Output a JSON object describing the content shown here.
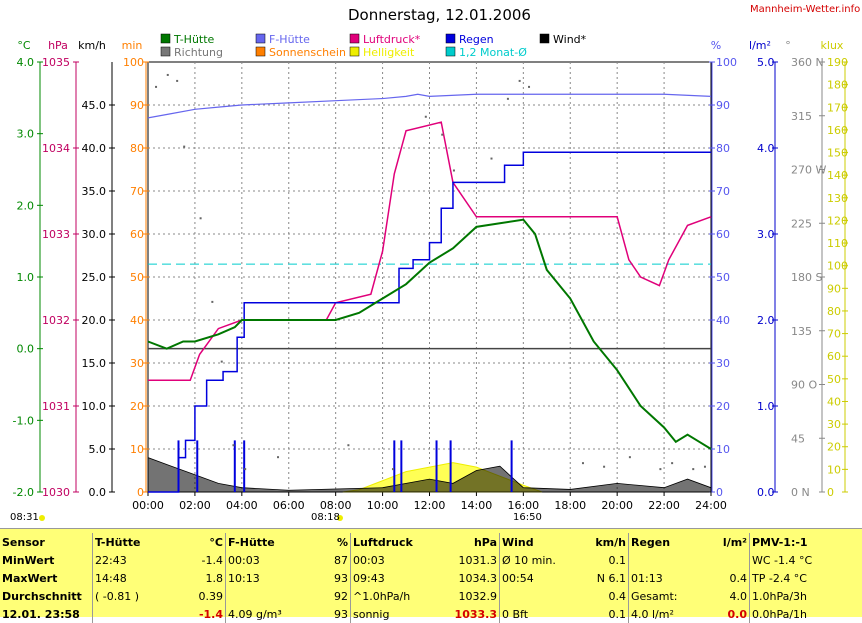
{
  "title": "Donnerstag, 12.01.2006",
  "site": "Mannheim-Wetter.info",
  "legend": [
    {
      "label": "T-Hütte",
      "color": "#007700"
    },
    {
      "label": "Richtung",
      "color": "#777777"
    },
    {
      "label": "F-Hütte",
      "color": "#6666ee"
    },
    {
      "label": "Sonnenschein",
      "color": "#ff7f00"
    },
    {
      "label": "Luftdruck*",
      "color": "#e0007a"
    },
    {
      "label": "Helligkeit",
      "color": "#eeee00"
    },
    {
      "label": "Regen",
      "color": "#0000dd"
    },
    {
      "label": "1,2 Monat-Ø",
      "color": "#00cccc"
    },
    {
      "label": "Wind*",
      "color": "#000000"
    }
  ],
  "axes": {
    "c": {
      "unit": "°C",
      "ticks": [
        "4.0",
        "3.0",
        "2.0",
        "1.0",
        "0.0",
        "-1.0",
        "-2.0"
      ],
      "color": "#008800"
    },
    "hpa": {
      "unit": "hPa",
      "ticks": [
        "1035",
        "1034",
        "1033",
        "1032",
        "1031",
        "1030"
      ],
      "color": "#c00060"
    },
    "kmh": {
      "unit": "km/h",
      "ticks": [
        "45.0",
        "40.0",
        "35.0",
        "30.0",
        "25.0",
        "20.0",
        "15.0",
        "10.0",
        "5.0",
        "0.0"
      ],
      "color": "#000000"
    },
    "min": {
      "unit": "min",
      "ticks": [
        "100",
        "90",
        "80",
        "70",
        "60",
        "50",
        "40",
        "30",
        "20",
        "10",
        "0"
      ],
      "color": "#ff7f00"
    },
    "pct": {
      "unit": "%",
      "ticks": [
        "100",
        "90",
        "80",
        "70",
        "60",
        "50",
        "40",
        "30",
        "20",
        "10",
        "0"
      ],
      "color": "#5555ee"
    },
    "lm2": {
      "unit": "l/m²",
      "ticks": [
        "5.0",
        "4.0",
        "3.0",
        "2.0",
        "1.0",
        "0.0"
      ],
      "color": "#0000cc"
    },
    "dir": {
      "unit": "°",
      "ticks": [
        "360 N",
        "315",
        "270 W",
        "225",
        "180 S",
        "135",
        "90 O",
        "45",
        "0 N"
      ],
      "color": "#888888"
    },
    "klux": {
      "unit": "klux",
      "ticks": [
        "190",
        "180",
        "170",
        "160",
        "150",
        "140",
        "130",
        "120",
        "110",
        "100",
        "90",
        "80",
        "70",
        "60",
        "50",
        "40",
        "30",
        "20",
        "10",
        "0"
      ],
      "color": "#cccc00"
    },
    "x": {
      "ticks": [
        "00:00",
        "02:00",
        "04:00",
        "06:00",
        "08:00",
        "10:00",
        "12:00",
        "14:00",
        "16:00",
        "18:00",
        "20:00",
        "22:00",
        "24:00"
      ]
    }
  },
  "annotations": {
    "sunrise": "08:18",
    "sunset": "16:50",
    "peak_time": "^1: ",
    "moonrise": "08:31"
  },
  "chart_data": {
    "type": "line",
    "title": "Donnerstag, 12.01.2006",
    "x_unit": "hour",
    "series": [
      {
        "name": "T-Hütte",
        "unit": "°C",
        "points": [
          [
            0,
            0.1
          ],
          [
            0.8,
            0.0
          ],
          [
            1.5,
            0.1
          ],
          [
            2,
            0.1
          ],
          [
            3,
            0.2
          ],
          [
            3.7,
            0.3
          ],
          [
            4,
            0.4
          ],
          [
            6,
            0.4
          ],
          [
            8,
            0.4
          ],
          [
            9,
            0.5
          ],
          [
            10,
            0.7
          ],
          [
            11,
            0.9
          ],
          [
            12,
            1.2
          ],
          [
            13,
            1.4
          ],
          [
            14,
            1.7
          ],
          [
            15,
            1.75
          ],
          [
            16,
            1.8
          ],
          [
            16.5,
            1.6
          ],
          [
            17,
            1.1
          ],
          [
            18,
            0.7
          ],
          [
            19,
            0.1
          ],
          [
            20,
            -0.3
          ],
          [
            21,
            -0.8
          ],
          [
            22,
            -1.1
          ],
          [
            22.5,
            -1.3
          ],
          [
            23,
            -1.2
          ],
          [
            23.5,
            -1.3
          ],
          [
            24,
            -1.4
          ]
        ]
      },
      {
        "name": "F-Hütte",
        "unit": "%",
        "points": [
          [
            0,
            87
          ],
          [
            1,
            88
          ],
          [
            2,
            89
          ],
          [
            3,
            89.5
          ],
          [
            4,
            90
          ],
          [
            6,
            90.5
          ],
          [
            8,
            91
          ],
          [
            10,
            91.5
          ],
          [
            11,
            92
          ],
          [
            11.5,
            92.5
          ],
          [
            12,
            92
          ],
          [
            14,
            92.5
          ],
          [
            16,
            92.5
          ],
          [
            18,
            92.5
          ],
          [
            20,
            92.5
          ],
          [
            22,
            92.5
          ],
          [
            24,
            92
          ]
        ]
      },
      {
        "name": "Luftdruck*",
        "unit": "hPa",
        "points": [
          [
            0,
            1031.3
          ],
          [
            1.8,
            1031.3
          ],
          [
            2.2,
            1031.6
          ],
          [
            3,
            1031.9
          ],
          [
            4,
            1032.0
          ],
          [
            7.6,
            1032.0
          ],
          [
            8,
            1032.2
          ],
          [
            9.5,
            1032.3
          ],
          [
            10,
            1032.8
          ],
          [
            10.5,
            1033.7
          ],
          [
            11,
            1034.2
          ],
          [
            12.5,
            1034.3
          ],
          [
            13,
            1033.6
          ],
          [
            14,
            1033.2
          ],
          [
            16,
            1033.2
          ],
          [
            18,
            1033.2
          ],
          [
            19,
            1033.2
          ],
          [
            20,
            1033.2
          ],
          [
            20.5,
            1032.7
          ],
          [
            21,
            1032.5
          ],
          [
            21.8,
            1032.4
          ],
          [
            22.2,
            1032.7
          ],
          [
            23,
            1033.1
          ],
          [
            24,
            1033.2
          ]
        ]
      },
      {
        "name": "Regen",
        "unit": "l/m²",
        "points": [
          [
            0,
            0
          ],
          [
            1.1,
            0
          ],
          [
            1.3,
            0.4
          ],
          [
            1.6,
            0.6
          ],
          [
            2,
            1.0
          ],
          [
            2.5,
            1.3
          ],
          [
            3.2,
            1.4
          ],
          [
            3.8,
            1.8
          ],
          [
            4.1,
            2.2
          ],
          [
            6,
            2.2
          ],
          [
            9,
            2.2
          ],
          [
            10.5,
            2.2
          ],
          [
            10.7,
            2.6
          ],
          [
            11.3,
            2.7
          ],
          [
            12,
            2.9
          ],
          [
            12.5,
            3.3
          ],
          [
            13,
            3.6
          ],
          [
            14,
            3.6
          ],
          [
            15.2,
            3.8
          ],
          [
            16,
            3.95
          ],
          [
            18,
            3.95
          ],
          [
            22,
            3.95
          ],
          [
            24,
            3.95
          ]
        ]
      },
      {
        "name": "1,2 Monat-Ø",
        "unit": "%",
        "value": 53
      },
      {
        "name": "Wind*",
        "unit": "km/h",
        "points": [
          [
            0,
            4
          ],
          [
            1,
            3
          ],
          [
            2,
            2
          ],
          [
            3,
            1
          ],
          [
            4,
            0.5
          ],
          [
            6,
            0.2
          ],
          [
            10,
            0.5
          ],
          [
            12,
            1.5
          ],
          [
            13,
            1.0
          ],
          [
            14,
            2.5
          ],
          [
            15,
            3
          ],
          [
            16,
            0.5
          ],
          [
            18,
            0.3
          ],
          [
            20,
            1.0
          ],
          [
            22,
            0.5
          ],
          [
            23,
            1.5
          ],
          [
            24,
            0.5
          ]
        ]
      },
      {
        "name": "Helligkeit",
        "unit": "klux",
        "points": [
          [
            8.3,
            0
          ],
          [
            9,
            1
          ],
          [
            10,
            5
          ],
          [
            11,
            9
          ],
          [
            12,
            11
          ],
          [
            13,
            13
          ],
          [
            14,
            11
          ],
          [
            15,
            7
          ],
          [
            16,
            3
          ],
          [
            16.8,
            0
          ]
        ]
      }
    ]
  },
  "summary": {
    "headers": [
      "Sensor",
      "T-Hütte",
      "°C",
      "F-Hütte",
      "%",
      "Luftdruck",
      "hPa",
      "Wind",
      "km/h",
      "Regen",
      "l/m²",
      "PMV-1:-1"
    ],
    "rows": [
      [
        "MinWert",
        "22:43",
        "-1.4",
        "00:03",
        "87",
        "00:03",
        "1031.3",
        "Ø 10 min.",
        "0.1",
        "",
        "",
        "WC -1.4 °C"
      ],
      [
        "MaxWert",
        "14:48",
        "1.8",
        "10:13",
        "93",
        "09:43",
        "1034.3",
        "00:54",
        "N 6.1",
        "01:13",
        "0.4",
        "TP -2.4 °C"
      ],
      [
        "Durchschnitt",
        "( -0.81 )",
        "0.39",
        "",
        "92",
        "^1.0hPa/h",
        "1032.9",
        "",
        "0.4",
        "Gesamt:",
        "4.0",
        "1.0hPa/3h"
      ],
      [
        "12.01. 23:58",
        "",
        "-1.4",
        "4.09 g/m³",
        "93",
        "sonnig",
        "1033.3",
        "0 Bft",
        "0.1",
        "4.0 l/m²",
        "0.0",
        "0.0hPa/1h"
      ]
    ]
  }
}
